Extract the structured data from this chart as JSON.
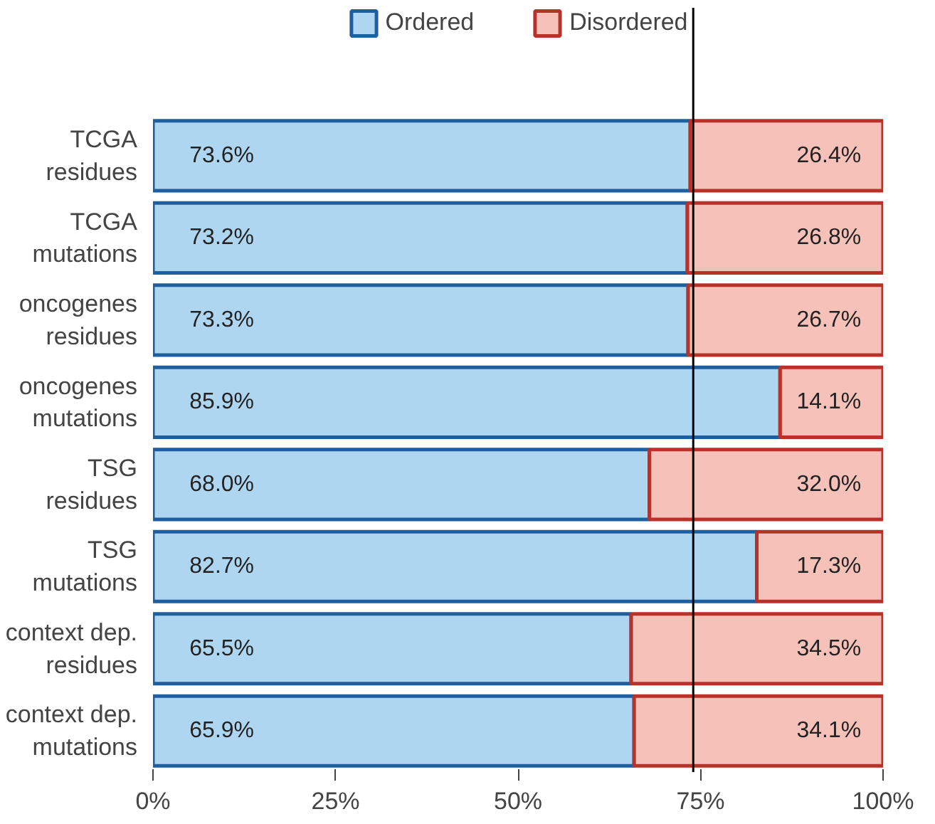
{
  "chart_data": {
    "type": "bar",
    "orientation": "horizontal",
    "stacked": true,
    "categories": [
      "TCGA\nresidues",
      "TCGA\nmutations",
      "oncogenes\nresidues",
      "oncogenes\nmutations",
      "TSG\nresidues",
      "TSG\nmutations",
      "context dep.\nresidues",
      "context dep.\nmutations"
    ],
    "series": [
      {
        "name": "Ordered",
        "color": "#aed6f1",
        "values": [
          73.6,
          73.2,
          73.3,
          85.9,
          68.0,
          82.7,
          65.5,
          65.9
        ],
        "value_labels": [
          "73.6%",
          "73.2%",
          "73.3%",
          "85.9%",
          "68.0%",
          "82.7%",
          "65.5%",
          "65.9%"
        ]
      },
      {
        "name": "Disordered",
        "color": "#f5c1b8",
        "values": [
          26.4,
          26.8,
          26.7,
          14.1,
          32.0,
          17.3,
          34.5,
          34.1
        ],
        "value_labels": [
          "26.4%",
          "26.8%",
          "26.7%",
          "14.1%",
          "32.0%",
          "17.3%",
          "34.5%",
          "34.1%"
        ]
      }
    ],
    "xlim": [
      0,
      100
    ],
    "xticks": [
      {
        "value": 0,
        "label": "0%"
      },
      {
        "value": 25,
        "label": "25%"
      },
      {
        "value": 50,
        "label": "50%"
      },
      {
        "value": 75,
        "label": "75%"
      },
      {
        "value": 100,
        "label": "100%"
      }
    ],
    "ref_lines": [
      {
        "axis": "x",
        "value": 74,
        "color": "#000000"
      }
    ],
    "grid": false,
    "legend": "top"
  }
}
